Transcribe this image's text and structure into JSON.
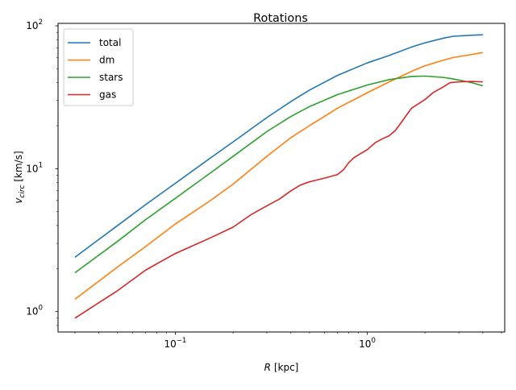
{
  "chart_data": {
    "type": "line",
    "title": "Rotations",
    "xlabel_var": "R",
    "xlabel_unit": " [kpc]",
    "ylabel_var": "v",
    "ylabel_sub": "circ",
    "ylabel_unit": " [km/s]",
    "xscale": "log",
    "yscale": "log",
    "xlim": [
      0.0245,
      5.2
    ],
    "ylim": [
      0.72,
      104
    ],
    "x_ticks": [
      {
        "value": 0.1,
        "base": "10",
        "exp": "−1"
      },
      {
        "value": 1,
        "base": "10",
        "exp": "0"
      }
    ],
    "y_ticks": [
      {
        "value": 1,
        "base": "10",
        "exp": "0"
      },
      {
        "value": 10,
        "base": "10",
        "exp": "1"
      },
      {
        "value": 100,
        "base": "10",
        "exp": "2"
      }
    ],
    "legend_position": "upper-left",
    "grid": false,
    "series": [
      {
        "name": "total",
        "color": "#1f77b4",
        "x": [
          0.03,
          0.05,
          0.07,
          0.1,
          0.15,
          0.2,
          0.3,
          0.4,
          0.5,
          0.7,
          1.0,
          1.3,
          1.7,
          2.0,
          2.5,
          2.8,
          3.5,
          4.0
        ],
        "y": [
          2.4,
          4.0,
          5.6,
          7.9,
          11.7,
          15.4,
          22.8,
          29.5,
          35.5,
          45.0,
          55.0,
          62.0,
          71.0,
          76.0,
          82.0,
          84.5,
          86.0,
          86.5
        ]
      },
      {
        "name": "dm",
        "color": "#ff7f0e",
        "x": [
          0.03,
          0.05,
          0.07,
          0.1,
          0.15,
          0.2,
          0.3,
          0.4,
          0.5,
          0.7,
          1.0,
          1.3,
          1.7,
          2.0,
          2.5,
          2.8,
          3.5,
          4.0
        ],
        "y": [
          1.22,
          2.05,
          2.85,
          4.1,
          5.9,
          7.8,
          12.2,
          16.5,
          20.0,
          26.5,
          34.0,
          40.5,
          48.0,
          52.5,
          57.5,
          60.0,
          63.0,
          65.0
        ]
      },
      {
        "name": "stars",
        "color": "#2ca02c",
        "x": [
          0.03,
          0.05,
          0.07,
          0.1,
          0.15,
          0.2,
          0.3,
          0.4,
          0.5,
          0.7,
          1.0,
          1.3,
          1.7,
          2.0,
          2.5,
          2.8,
          3.5,
          4.0
        ],
        "y": [
          1.87,
          3.1,
          4.4,
          6.2,
          9.2,
          12.2,
          18.2,
          23.2,
          27.2,
          33.0,
          38.5,
          42.0,
          44.2,
          44.5,
          43.5,
          42.5,
          40.0,
          38.0
        ]
      },
      {
        "name": "gas",
        "color": "#d62728",
        "x": [
          0.03,
          0.05,
          0.07,
          0.1,
          0.15,
          0.2,
          0.25,
          0.3,
          0.35,
          0.4,
          0.45,
          0.5,
          0.6,
          0.7,
          0.75,
          0.8,
          0.85,
          0.9,
          1.0,
          1.1,
          1.2,
          1.3,
          1.4,
          1.5,
          1.7,
          2.0,
          2.2,
          2.5,
          2.7,
          3.0,
          3.5,
          4.0
        ],
        "y": [
          0.9,
          1.4,
          1.95,
          2.55,
          3.25,
          3.9,
          4.8,
          5.5,
          6.15,
          7.0,
          7.7,
          8.1,
          8.6,
          9.1,
          9.8,
          11.0,
          11.9,
          12.5,
          13.6,
          15.2,
          16.2,
          17.0,
          18.5,
          21.0,
          26.5,
          30.5,
          34.0,
          37.5,
          40.0,
          40.5,
          40.8,
          40.5
        ]
      }
    ]
  }
}
